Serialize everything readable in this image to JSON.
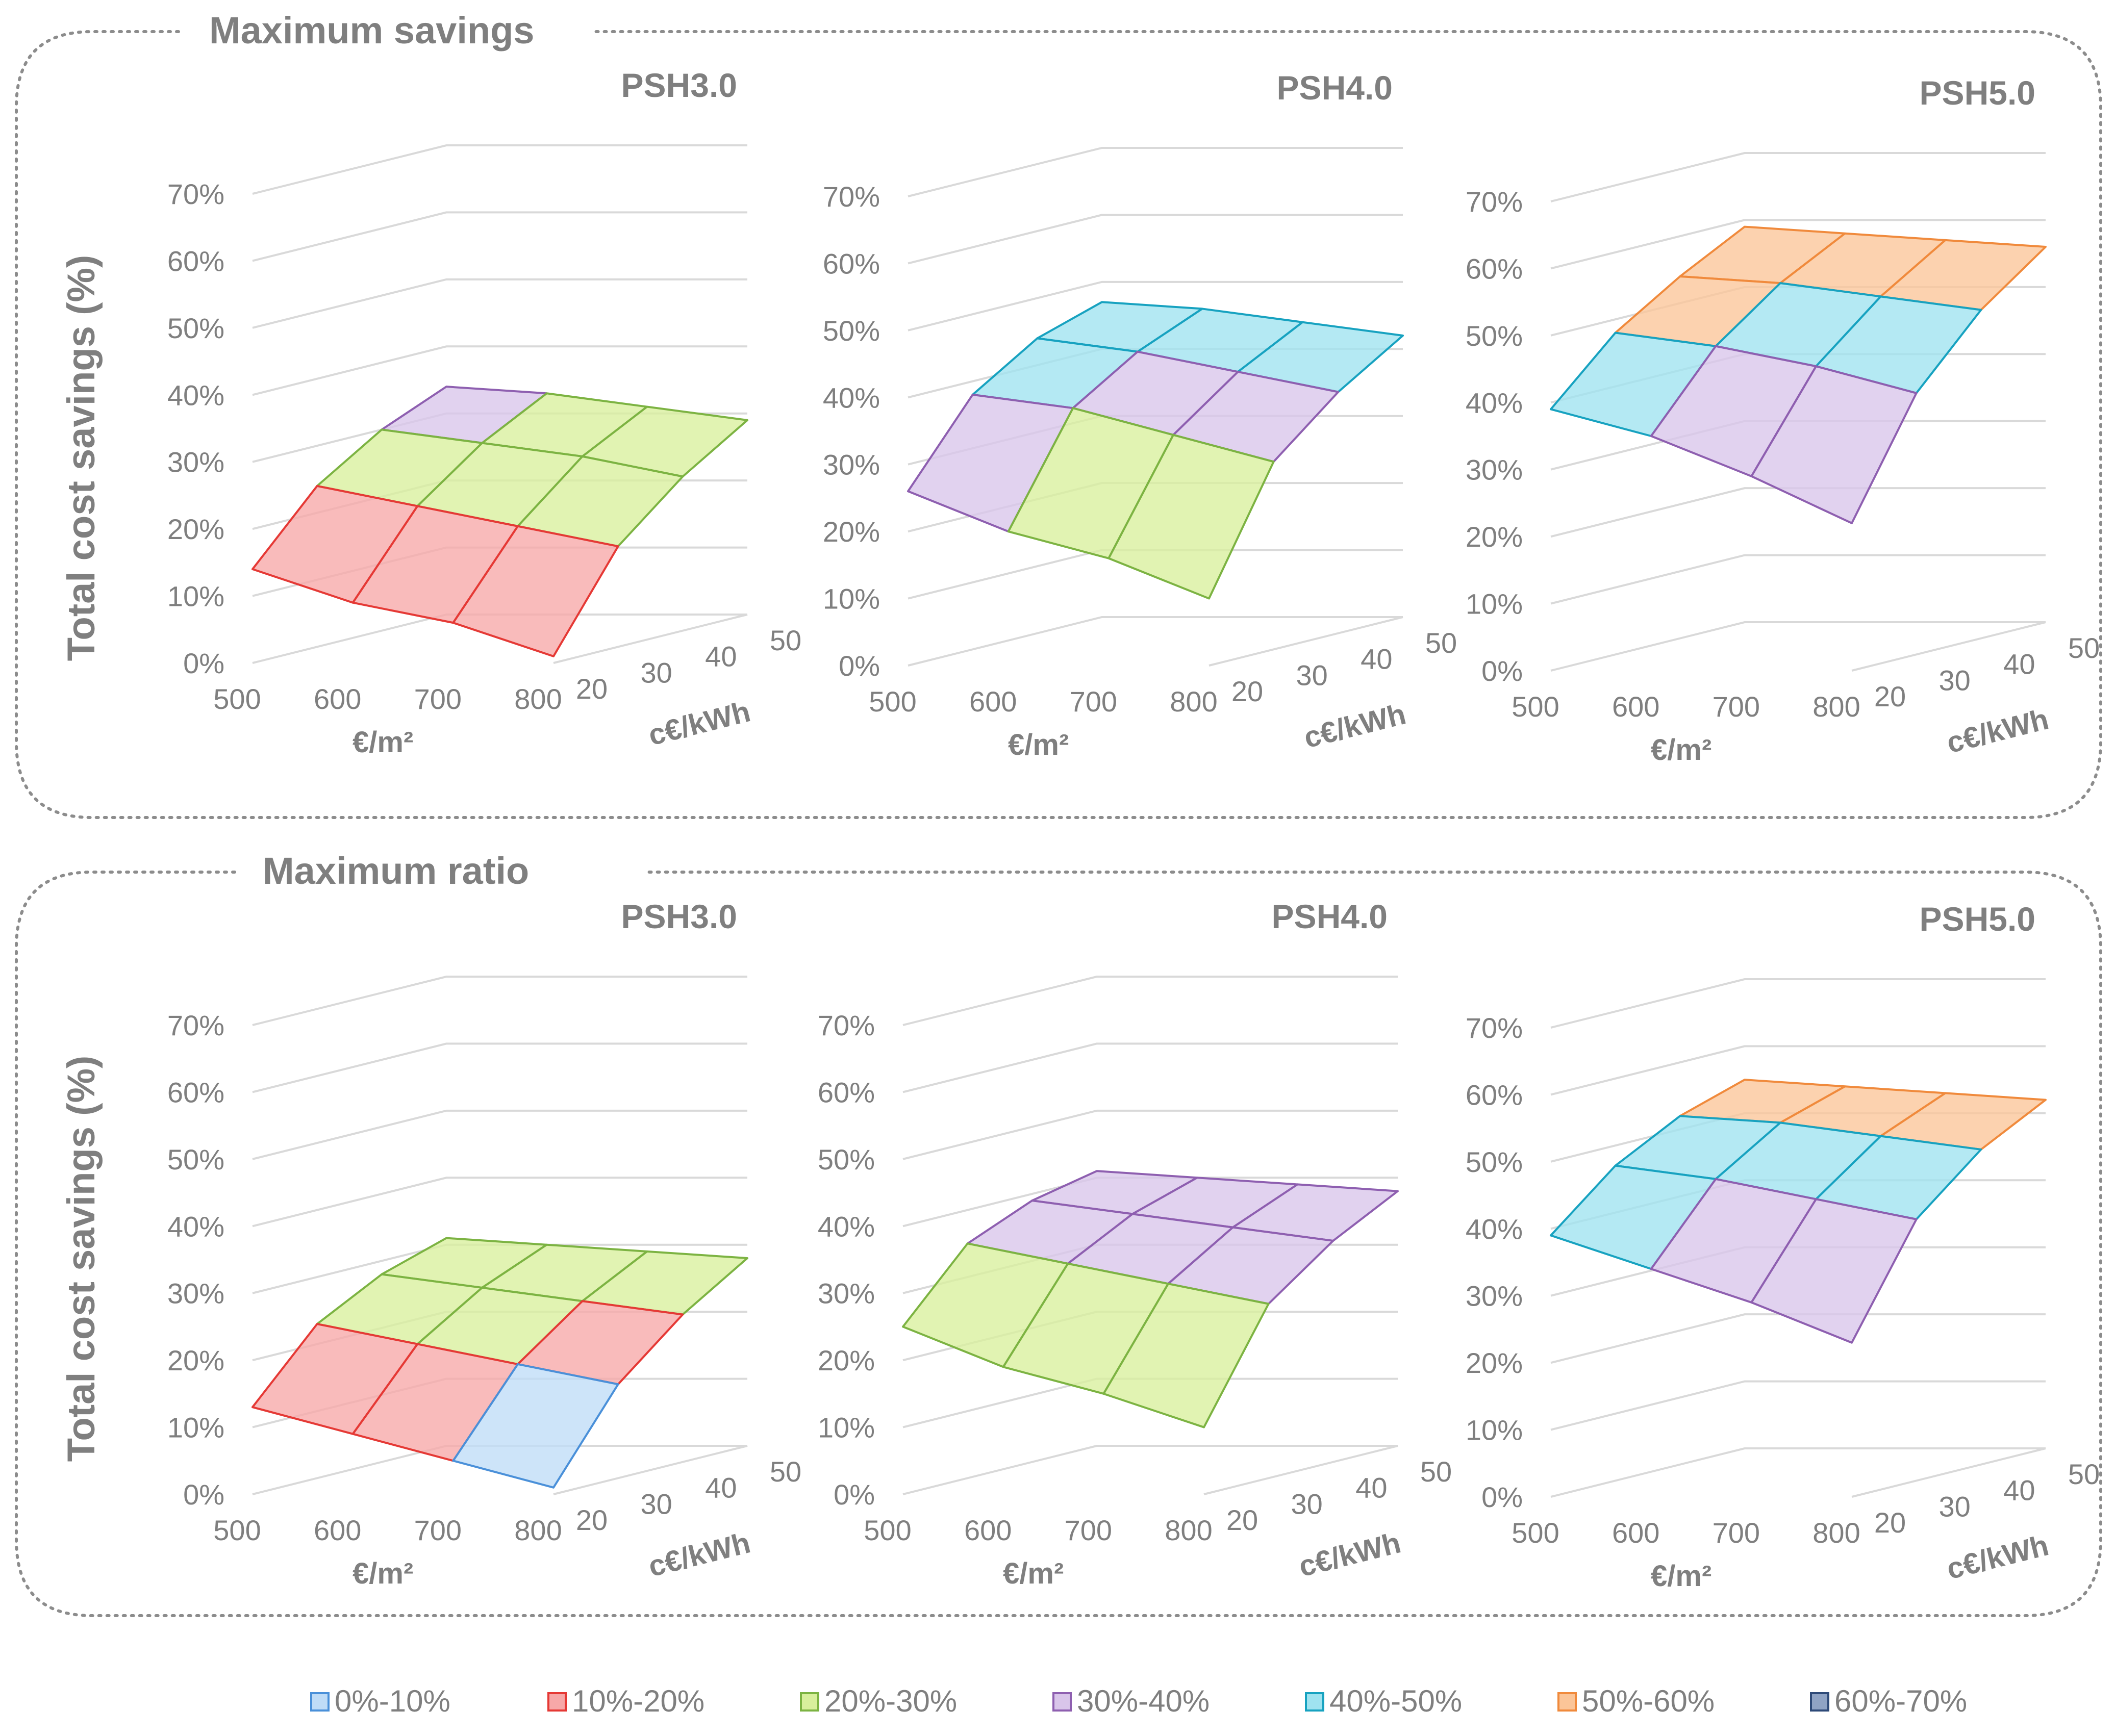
{
  "sections": [
    {
      "title": "Maximum savings"
    },
    {
      "title": "Maximum ratio"
    }
  ],
  "y_axis_title": "Total cost savings (%)",
  "legend": [
    {
      "label": "0%-10%",
      "color": "#4a90d9",
      "fill": "#bfdcf7"
    },
    {
      "label": "10%-20%",
      "color": "#e53935",
      "fill": "#f7a8a8"
    },
    {
      "label": "20%-30%",
      "color": "#7cb342",
      "fill": "#d8ef9c"
    },
    {
      "label": "30%-40%",
      "color": "#8e5fb0",
      "fill": "#d9c5ea"
    },
    {
      "label": "40%-50%",
      "color": "#17a2c0",
      "fill": "#9fe3f0"
    },
    {
      "label": "50%-60%",
      "color": "#f08a3c",
      "fill": "#fbc598"
    },
    {
      "label": "60%-70%",
      "color": "#2e4a78",
      "fill": "#8fa3c4"
    }
  ],
  "chart_data": [
    {
      "type": "surface",
      "section": "Maximum savings",
      "title": "PSH3.0",
      "xlabel": "€/m²",
      "ylabel": "c€/kWh",
      "zlabel": "Total cost savings (%)",
      "x_ticks": [
        "500",
        "600",
        "700",
        "800"
      ],
      "y_ticks": [
        "20",
        "30",
        "40",
        "50"
      ],
      "z_ticks": [
        "0%",
        "10%",
        "20%",
        "30%",
        "40%",
        "50%",
        "60%",
        "70%"
      ],
      "zlim": [
        0,
        70
      ],
      "x": [
        500,
        600,
        700,
        800
      ],
      "y": [
        20,
        30,
        40,
        50
      ],
      "z": [
        [
          14,
          24,
          30,
          34
        ],
        [
          9,
          21,
          28,
          33
        ],
        [
          6,
          18,
          26,
          31
        ],
        [
          1,
          15,
          23,
          29
        ]
      ]
    },
    {
      "type": "surface",
      "section": "Maximum savings",
      "title": "PSH4.0",
      "xlabel": "€/m²",
      "ylabel": "c€/kWh",
      "zlabel": "Total cost savings (%)",
      "x_ticks": [
        "500",
        "600",
        "700",
        "800"
      ],
      "y_ticks": [
        "20",
        "30",
        "40",
        "50"
      ],
      "z_ticks": [
        "0%",
        "10%",
        "20%",
        "30%",
        "40%",
        "50%",
        "60%",
        "70%"
      ],
      "zlim": [
        0,
        70
      ],
      "x": [
        500,
        600,
        700,
        800
      ],
      "y": [
        20,
        30,
        40,
        50
      ],
      "z": [
        [
          26,
          38,
          44,
          47
        ],
        [
          20,
          36,
          42,
          46
        ],
        [
          16,
          32,
          39,
          44
        ],
        [
          10,
          28,
          36,
          42
        ]
      ]
    },
    {
      "type": "surface",
      "section": "Maximum savings",
      "title": "PSH5.0",
      "xlabel": "€/m²",
      "ylabel": "c€/kWh",
      "zlabel": "Total cost savings (%)",
      "x_ticks": [
        "500",
        "600",
        "700",
        "800"
      ],
      "y_ticks": [
        "20",
        "30",
        "40",
        "50"
      ],
      "z_ticks": [
        "0%",
        "10%",
        "20%",
        "30%",
        "40%",
        "50%",
        "60%",
        "70%"
      ],
      "zlim": [
        0,
        70
      ],
      "x": [
        500,
        600,
        700,
        800
      ],
      "y": [
        20,
        30,
        40,
        50
      ],
      "z": [
        [
          39,
          48,
          54,
          59
        ],
        [
          35,
          46,
          53,
          58
        ],
        [
          29,
          43,
          51,
          57
        ],
        [
          22,
          39,
          49,
          56
        ]
      ]
    },
    {
      "type": "surface",
      "section": "Maximum ratio",
      "title": "PSH3.0",
      "xlabel": "€/m²",
      "ylabel": "c€/kWh",
      "zlabel": "Total cost savings (%)",
      "x_ticks": [
        "500",
        "600",
        "700",
        "800"
      ],
      "y_ticks": [
        "20",
        "30",
        "40",
        "50"
      ],
      "z_ticks": [
        "0%",
        "10%",
        "20%",
        "30%",
        "40%",
        "50%",
        "60%",
        "70%"
      ],
      "zlim": [
        0,
        70
      ],
      "x": [
        500,
        600,
        700,
        800
      ],
      "y": [
        20,
        30,
        40,
        50
      ],
      "z": [
        [
          13,
          23,
          28,
          31
        ],
        [
          9,
          20,
          26,
          30
        ],
        [
          5,
          17,
          24,
          29
        ],
        [
          1,
          14,
          22,
          28
        ]
      ]
    },
    {
      "type": "surface",
      "section": "Maximum ratio",
      "title": "PSH4.0",
      "xlabel": "€/m²",
      "ylabel": "c€/kWh",
      "zlabel": "Total cost savings (%)",
      "x_ticks": [
        "500",
        "600",
        "700",
        "800"
      ],
      "y_ticks": [
        "20",
        "30",
        "40",
        "50"
      ],
      "z_ticks": [
        "0%",
        "10%",
        "20%",
        "30%",
        "40%",
        "50%",
        "60%",
        "70%"
      ],
      "zlim": [
        0,
        70
      ],
      "x": [
        500,
        600,
        700,
        800
      ],
      "y": [
        20,
        30,
        40,
        50
      ],
      "z": [
        [
          25,
          35,
          39,
          41
        ],
        [
          19,
          32,
          37,
          40
        ],
        [
          15,
          29,
          35,
          39
        ],
        [
          10,
          26,
          33,
          38
        ]
      ]
    },
    {
      "type": "surface",
      "section": "Maximum ratio",
      "title": "PSH5.0",
      "xlabel": "€/m²",
      "ylabel": "c€/kWh",
      "zlabel": "Total cost savings (%)",
      "x_ticks": [
        "500",
        "600",
        "700",
        "800"
      ],
      "y_ticks": [
        "20",
        "30",
        "40",
        "50"
      ],
      "z_ticks": [
        "0%",
        "10%",
        "20%",
        "30%",
        "40%",
        "50%",
        "60%",
        "70%"
      ],
      "zlim": [
        0,
        70
      ],
      "x": [
        500,
        600,
        700,
        800
      ],
      "y": [
        20,
        30,
        40,
        50
      ],
      "z": [
        [
          39,
          47,
          52,
          55
        ],
        [
          34,
          45,
          51,
          54
        ],
        [
          29,
          42,
          49,
          53
        ],
        [
          23,
          39,
          47,
          52
        ]
      ]
    }
  ]
}
